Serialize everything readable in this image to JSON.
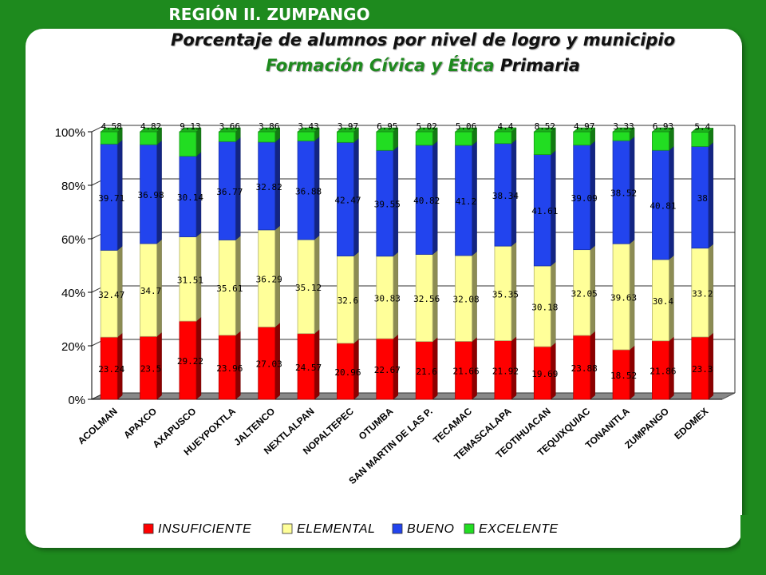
{
  "header": {
    "region": "REGIÓN II. ZUMPANGO",
    "title_line1": "Porcentaje de alumnos por nivel de logro y municipio",
    "title_line2_subject": "Formación Cívica y Ética",
    "title_line2_level": "Primaria"
  },
  "chart_data": {
    "type": "bar",
    "stacked": true,
    "categories": [
      "ACOLMAN",
      "APAXCO",
      "AXAPUSCO",
      "HUEYPOXTLA",
      "JALTENCO",
      "NEXTLALPAN",
      "NOPALTEPEC",
      "OTUMBA",
      "SAN MARTIN DE LAS P.",
      "TECAMAC",
      "TEMASCALAPA",
      "TEOTIHUACAN",
      "TEQUIXQUIAC",
      "TONANITLA",
      "ZUMPANGO",
      "EDOMEX"
    ],
    "series": [
      {
        "name": "INSUFICIENTE",
        "color": "#ff0000",
        "values": [
          23.24,
          23.5,
          29.22,
          23.96,
          27.03,
          24.57,
          20.96,
          22.67,
          21.6,
          21.66,
          21.92,
          19.69,
          23.88,
          18.52,
          21.86,
          23.3
        ]
      },
      {
        "name": "ELEMENTAL",
        "color": "#ffff99",
        "values": [
          32.47,
          34.7,
          31.51,
          35.61,
          36.29,
          35.12,
          32.6,
          30.83,
          32.56,
          32.08,
          35.35,
          30.18,
          32.05,
          39.63,
          30.4,
          33.2
        ]
      },
      {
        "name": "BUENO",
        "color": "#2244ee",
        "values": [
          39.71,
          36.98,
          30.14,
          36.77,
          32.82,
          36.88,
          42.47,
          39.55,
          40.82,
          41.2,
          38.34,
          41.61,
          39.09,
          38.52,
          40.81,
          38
        ]
      },
      {
        "name": "EXCELENTE",
        "color": "#22dd22",
        "values": [
          4.58,
          4.82,
          9.13,
          3.66,
          3.86,
          3.43,
          3.97,
          6.95,
          5.02,
          5.06,
          4.4,
          8.52,
          4.97,
          3.33,
          6.93,
          5.4
        ]
      }
    ],
    "y_ticks": [
      "0%",
      "20%",
      "40%",
      "60%",
      "80%",
      "100%"
    ],
    "ylim": [
      0,
      100
    ],
    "grid": true,
    "legend_position": "bottom"
  }
}
